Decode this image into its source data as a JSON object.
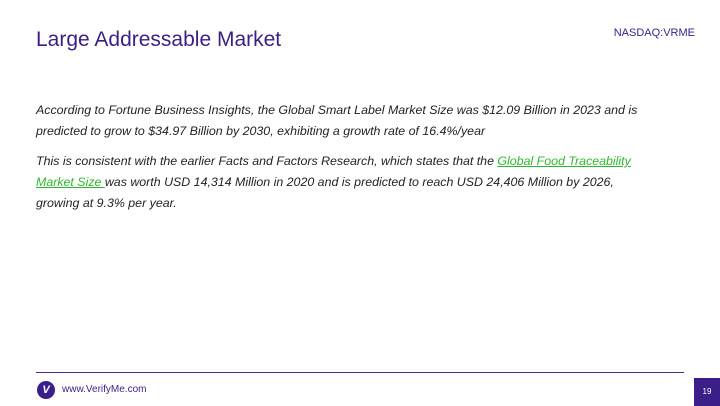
{
  "header": {
    "title": "Large Addressable Market",
    "ticker": "NASDAQ:VRME"
  },
  "body": {
    "paragraphs": [
      {
        "text": "According to Fortune Business Insights, the Global Smart Label Market Size was $12.09 Billion in 2023 and is predicted to grow to $34.97 Billion by 2030, exhibiting a growth rate of 16.4%/year"
      },
      {
        "before": "This is consistent with the earlier Facts and Factors Research, which states that the ",
        "link": "Global Food Traceability Market Size ",
        "after": "was worth USD 14,314 Million in 2020 and is predicted to reach USD 24,406 Million by 2026, growing at 9.3% per year."
      }
    ]
  },
  "footer": {
    "logo": "V",
    "url": "www.VerifyMe.com",
    "page": "19"
  }
}
